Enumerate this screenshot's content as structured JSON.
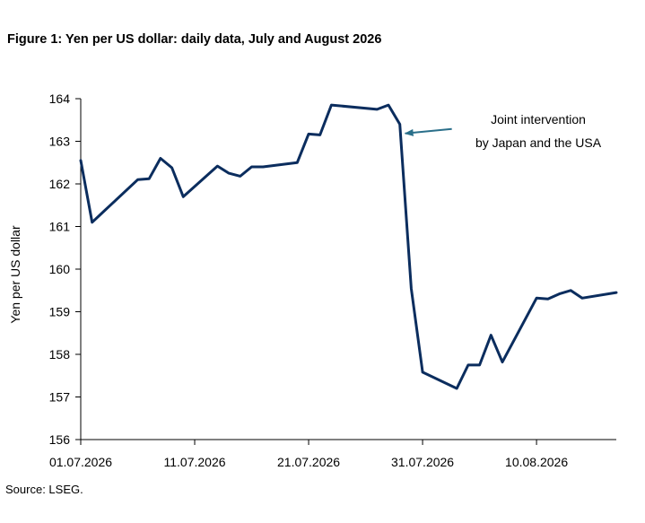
{
  "figure": {
    "title": "Figure 1: Yen per US dollar: daily data, July and August 2026",
    "source": "Source: LSEG."
  },
  "chart_data": {
    "type": "line",
    "title": "Figure 1: Yen per US dollar: daily data, July and August 2026",
    "xlabel": "",
    "ylabel": "Yen per US dollar",
    "xlim": [
      "2026-07-01",
      "2026-08-17"
    ],
    "ylim": [
      156,
      164
    ],
    "yticks": [
      156,
      157,
      158,
      159,
      160,
      161,
      162,
      163,
      164
    ],
    "xticks": [
      {
        "date": "2026-07-01",
        "label": "01.07.2026"
      },
      {
        "date": "2026-07-11",
        "label": "11.07.2026"
      },
      {
        "date": "2026-07-21",
        "label": "21.07.2026"
      },
      {
        "date": "2026-07-31",
        "label": "31.07.2026"
      },
      {
        "date": "2026-08-10",
        "label": "10.08.2026"
      }
    ],
    "grid": false,
    "line_color": "#0b2d5e",
    "annotation_color": "#2a6f8a",
    "series": [
      {
        "points": [
          {
            "date": "2026-07-01",
            "value": 162.55
          },
          {
            "date": "2026-07-02",
            "value": 161.1
          },
          {
            "date": "2026-07-03",
            "value": 161.35
          },
          {
            "date": "2026-07-06",
            "value": 162.1
          },
          {
            "date": "2026-07-07",
            "value": 162.12
          },
          {
            "date": "2026-07-08",
            "value": 162.6
          },
          {
            "date": "2026-07-09",
            "value": 162.38
          },
          {
            "date": "2026-07-10",
            "value": 161.7
          },
          {
            "date": "2026-07-13",
            "value": 162.42
          },
          {
            "date": "2026-07-14",
            "value": 162.25
          },
          {
            "date": "2026-07-15",
            "value": 162.18
          },
          {
            "date": "2026-07-16",
            "value": 162.4
          },
          {
            "date": "2026-07-17",
            "value": 162.4
          },
          {
            "date": "2026-07-20",
            "value": 162.5
          },
          {
            "date": "2026-07-21",
            "value": 163.17
          },
          {
            "date": "2026-07-22",
            "value": 163.15
          },
          {
            "date": "2026-07-23",
            "value": 163.85
          },
          {
            "date": "2026-07-27",
            "value": 163.75
          },
          {
            "date": "2026-07-28",
            "value": 163.85
          },
          {
            "date": "2026-07-29",
            "value": 163.4
          },
          {
            "date": "2026-07-30",
            "value": 159.55
          },
          {
            "date": "2026-07-31",
            "value": 157.58
          },
          {
            "date": "2026-08-03",
            "value": 157.2
          },
          {
            "date": "2026-08-04",
            "value": 157.75
          },
          {
            "date": "2026-08-05",
            "value": 157.75
          },
          {
            "date": "2026-08-06",
            "value": 158.45
          },
          {
            "date": "2026-08-07",
            "value": 157.82
          },
          {
            "date": "2026-08-10",
            "value": 159.32
          },
          {
            "date": "2026-08-11",
            "value": 159.3
          },
          {
            "date": "2026-08-12",
            "value": 159.42
          },
          {
            "date": "2026-08-13",
            "value": 159.5
          },
          {
            "date": "2026-08-14",
            "value": 159.32
          },
          {
            "date": "2026-08-17",
            "value": 159.45
          }
        ]
      }
    ],
    "annotations": [
      {
        "text_lines": [
          "Joint intervention",
          "by Japan and the USA"
        ],
        "points_to": {
          "date": "2026-07-29",
          "value": 163.1
        }
      }
    ]
  }
}
